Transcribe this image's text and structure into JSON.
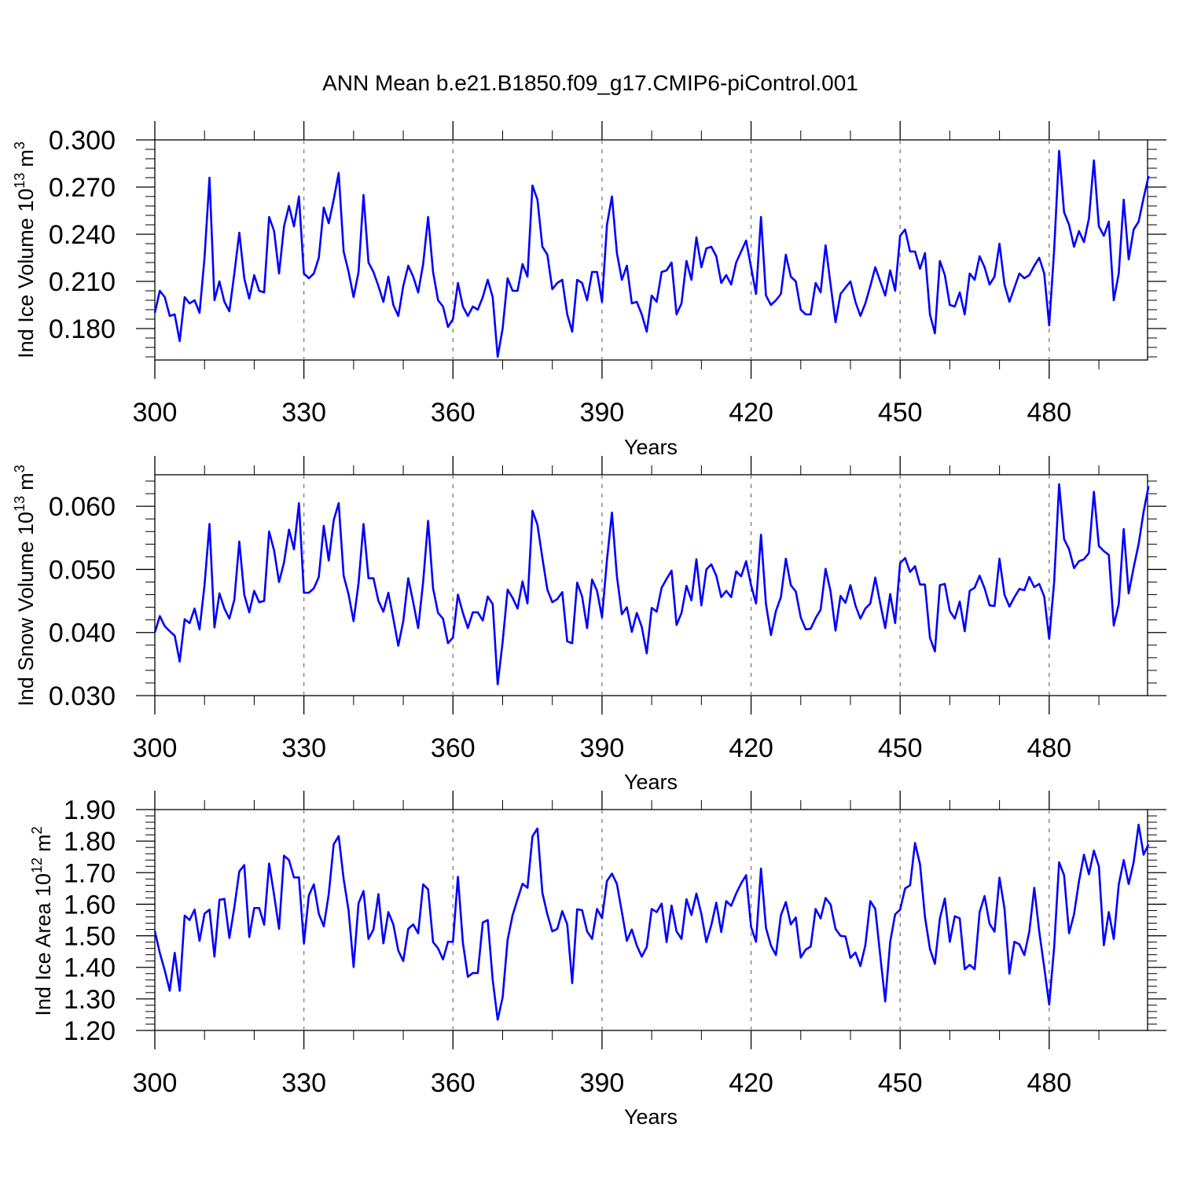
{
  "title": "ANN Mean b.e21.B1850.f09_g17.CMIP6-piControl.001",
  "line_color": "#0000ff",
  "chart_data": [
    {
      "type": "line",
      "ylabel_main": "Ind Ice Volume 10",
      "ylabel_exp": "13",
      "ylabel_unit": "m",
      "ylabel_unit_exp": "3",
      "xlabel": "Years",
      "xlim": [
        300,
        499.8
      ],
      "ylim": [
        0.16,
        0.3
      ],
      "xticks": [
        "300",
        "330",
        "360",
        "390",
        "420",
        "450",
        "480"
      ],
      "yticks": [
        "0.180",
        "0.210",
        "0.240",
        "0.270",
        "0.300"
      ],
      "grid": "dashed vertical at major x ticks",
      "x_start": 300,
      "values": [
        0.19,
        0.204,
        0.2,
        0.188,
        0.189,
        0.172,
        0.2,
        0.196,
        0.198,
        0.19,
        0.225,
        0.276,
        0.198,
        0.21,
        0.197,
        0.191,
        0.215,
        0.241,
        0.212,
        0.199,
        0.214,
        0.204,
        0.203,
        0.251,
        0.242,
        0.215,
        0.245,
        0.258,
        0.245,
        0.264,
        0.215,
        0.212,
        0.215,
        0.225,
        0.257,
        0.247,
        0.262,
        0.279,
        0.229,
        0.216,
        0.2,
        0.216,
        0.265,
        0.222,
        0.216,
        0.207,
        0.197,
        0.213,
        0.195,
        0.188,
        0.207,
        0.22,
        0.213,
        0.203,
        0.221,
        0.251,
        0.216,
        0.198,
        0.194,
        0.181,
        0.186,
        0.209,
        0.194,
        0.188,
        0.194,
        0.192,
        0.2,
        0.211,
        0.2,
        0.162,
        0.18,
        0.212,
        0.204,
        0.204,
        0.221,
        0.213,
        0.271,
        0.262,
        0.232,
        0.227,
        0.205,
        0.209,
        0.211,
        0.189,
        0.178,
        0.211,
        0.209,
        0.198,
        0.216,
        0.216,
        0.197,
        0.246,
        0.264,
        0.228,
        0.211,
        0.22,
        0.196,
        0.197,
        0.189,
        0.178,
        0.201,
        0.197,
        0.216,
        0.217,
        0.222,
        0.189,
        0.196,
        0.223,
        0.211,
        0.238,
        0.219,
        0.231,
        0.232,
        0.226,
        0.209,
        0.214,
        0.208,
        0.222,
        0.229,
        0.236,
        0.219,
        0.202,
        0.251,
        0.201,
        0.195,
        0.198,
        0.202,
        0.227,
        0.213,
        0.21,
        0.192,
        0.189,
        0.189,
        0.209,
        0.203,
        0.233,
        0.208,
        0.184,
        0.202,
        0.206,
        0.21,
        0.197,
        0.188,
        0.196,
        0.207,
        0.219,
        0.21,
        0.201,
        0.217,
        0.204,
        0.239,
        0.243,
        0.229,
        0.229,
        0.218,
        0.228,
        0.189,
        0.177,
        0.223,
        0.214,
        0.195,
        0.194,
        0.203,
        0.189,
        0.215,
        0.211,
        0.226,
        0.219,
        0.208,
        0.213,
        0.234,
        0.208,
        0.197,
        0.206,
        0.215,
        0.212,
        0.214,
        0.22,
        0.225,
        0.215,
        0.182,
        0.23,
        0.293,
        0.254,
        0.246,
        0.232,
        0.242,
        0.235,
        0.25,
        0.287,
        0.245,
        0.239,
        0.248,
        0.198,
        0.215,
        0.262,
        0.224,
        0.243,
        0.248,
        0.263,
        0.277
      ]
    },
    {
      "type": "line",
      "ylabel_main": "Ind Snow Volume 10",
      "ylabel_exp": "13",
      "ylabel_unit": "m",
      "ylabel_unit_exp": "3",
      "xlabel": "Years",
      "xlim": [
        300,
        499.8
      ],
      "ylim": [
        0.03,
        0.065
      ],
      "xticks": [
        "300",
        "330",
        "360",
        "390",
        "420",
        "450",
        "480"
      ],
      "yticks": [
        "0.030",
        "0.040",
        "0.050",
        "0.060"
      ],
      "grid": "dashed vertical at major x ticks",
      "x_start": 300,
      "values": [
        0.04,
        0.0426,
        0.041,
        0.0402,
        0.0395,
        0.0354,
        0.0421,
        0.0415,
        0.0438,
        0.0405,
        0.0475,
        0.0572,
        0.0408,
        0.0462,
        0.0438,
        0.0422,
        0.0452,
        0.0544,
        0.046,
        0.0432,
        0.0466,
        0.0448,
        0.045,
        0.056,
        0.053,
        0.048,
        0.0511,
        0.0563,
        0.0532,
        0.0605,
        0.0463,
        0.0463,
        0.047,
        0.0488,
        0.0569,
        0.0514,
        0.0578,
        0.0605,
        0.049,
        0.046,
        0.0418,
        0.0478,
        0.0572,
        0.0486,
        0.0486,
        0.045,
        0.0433,
        0.0463,
        0.0422,
        0.0379,
        0.0418,
        0.0486,
        0.0448,
        0.0407,
        0.048,
        0.0577,
        0.047,
        0.0431,
        0.0422,
        0.0383,
        0.0392,
        0.046,
        0.0431,
        0.0407,
        0.0432,
        0.0432,
        0.0419,
        0.0457,
        0.0445,
        0.0318,
        0.0385,
        0.0468,
        0.0455,
        0.0438,
        0.0481,
        0.0446,
        0.0593,
        0.0571,
        0.0518,
        0.0468,
        0.0448,
        0.0453,
        0.0464,
        0.0386,
        0.0383,
        0.0479,
        0.0457,
        0.0407,
        0.0484,
        0.0466,
        0.0424,
        0.0515,
        0.059,
        0.0489,
        0.0429,
        0.044,
        0.0401,
        0.0431,
        0.0409,
        0.0367,
        0.0439,
        0.0433,
        0.0471,
        0.0485,
        0.0498,
        0.0412,
        0.0431,
        0.0474,
        0.0451,
        0.0516,
        0.0443,
        0.05,
        0.0508,
        0.049,
        0.0456,
        0.0466,
        0.0456,
        0.0497,
        0.0489,
        0.0513,
        0.0475,
        0.0446,
        0.0555,
        0.0445,
        0.0396,
        0.0434,
        0.0456,
        0.0517,
        0.0475,
        0.0465,
        0.0424,
        0.0405,
        0.0406,
        0.0423,
        0.0436,
        0.0501,
        0.0465,
        0.0403,
        0.0458,
        0.0447,
        0.0475,
        0.0443,
        0.0422,
        0.0438,
        0.0446,
        0.0487,
        0.0446,
        0.0407,
        0.0461,
        0.0415,
        0.051,
        0.0518,
        0.0496,
        0.0505,
        0.0476,
        0.0476,
        0.0392,
        0.037,
        0.0475,
        0.0477,
        0.0434,
        0.0422,
        0.0449,
        0.0402,
        0.0466,
        0.0471,
        0.049,
        0.047,
        0.0443,
        0.0442,
        0.0517,
        0.046,
        0.0441,
        0.0456,
        0.0469,
        0.0467,
        0.0488,
        0.0472,
        0.0477,
        0.0457,
        0.039,
        0.048,
        0.0635,
        0.0548,
        0.0532,
        0.0502,
        0.0513,
        0.0516,
        0.0526,
        0.0623,
        0.0537,
        0.0529,
        0.0523,
        0.0411,
        0.0445,
        0.0564,
        0.0462,
        0.0503,
        0.054,
        0.0591,
        0.0632
      ]
    },
    {
      "type": "line",
      "ylabel_main": "Ind Ice Area 10",
      "ylabel_exp": "12",
      "ylabel_unit": "m",
      "ylabel_unit_exp": "2",
      "xlabel": "Years",
      "xlim": [
        300,
        499.8
      ],
      "ylim": [
        1.2,
        1.9
      ],
      "xticks": [
        "300",
        "330",
        "360",
        "390",
        "420",
        "450",
        "480"
      ],
      "yticks": [
        "1.20",
        "1.30",
        "1.40",
        "1.50",
        "1.60",
        "1.70",
        "1.80",
        "1.90"
      ],
      "grid": "dashed vertical at major x ticks",
      "x_start": 300,
      "values": [
        1.515,
        1.446,
        1.39,
        1.326,
        1.446,
        1.326,
        1.564,
        1.55,
        1.583,
        1.484,
        1.57,
        1.583,
        1.434,
        1.614,
        1.617,
        1.493,
        1.59,
        1.704,
        1.724,
        1.496,
        1.588,
        1.588,
        1.535,
        1.729,
        1.63,
        1.522,
        1.754,
        1.74,
        1.685,
        1.685,
        1.476,
        1.628,
        1.663,
        1.57,
        1.53,
        1.632,
        1.79,
        1.816,
        1.68,
        1.58,
        1.401,
        1.603,
        1.642,
        1.49,
        1.52,
        1.632,
        1.476,
        1.575,
        1.536,
        1.453,
        1.42,
        1.522,
        1.536,
        1.508,
        1.663,
        1.647,
        1.48,
        1.46,
        1.425,
        1.481,
        1.481,
        1.687,
        1.478,
        1.37,
        1.382,
        1.382,
        1.542,
        1.55,
        1.36,
        1.234,
        1.305,
        1.487,
        1.565,
        1.616,
        1.665,
        1.652,
        1.815,
        1.84,
        1.636,
        1.568,
        1.514,
        1.522,
        1.578,
        1.536,
        1.35,
        1.584,
        1.581,
        1.514,
        1.49,
        1.585,
        1.556,
        1.674,
        1.697,
        1.664,
        1.575,
        1.484,
        1.52,
        1.469,
        1.434,
        1.464,
        1.585,
        1.575,
        1.602,
        1.48,
        1.596,
        1.514,
        1.49,
        1.616,
        1.566,
        1.634,
        1.569,
        1.48,
        1.534,
        1.605,
        1.512,
        1.61,
        1.595,
        1.634,
        1.666,
        1.692,
        1.528,
        1.481,
        1.713,
        1.525,
        1.469,
        1.439,
        1.565,
        1.607,
        1.536,
        1.558,
        1.431,
        1.456,
        1.466,
        1.585,
        1.555,
        1.62,
        1.599,
        1.522,
        1.5,
        1.498,
        1.43,
        1.447,
        1.404,
        1.47,
        1.61,
        1.585,
        1.437,
        1.292,
        1.481,
        1.568,
        1.583,
        1.65,
        1.66,
        1.794,
        1.727,
        1.56,
        1.458,
        1.411,
        1.555,
        1.618,
        1.481,
        1.562,
        1.555,
        1.394,
        1.408,
        1.394,
        1.575,
        1.626,
        1.538,
        1.513,
        1.684,
        1.587,
        1.38,
        1.481,
        1.473,
        1.439,
        1.513,
        1.652,
        1.513,
        1.4,
        1.282,
        1.463,
        1.733,
        1.692,
        1.508,
        1.568,
        1.673,
        1.757,
        1.695,
        1.77,
        1.72,
        1.47,
        1.575,
        1.49,
        1.662,
        1.74,
        1.664,
        1.733,
        1.852,
        1.757,
        1.79
      ]
    }
  ]
}
